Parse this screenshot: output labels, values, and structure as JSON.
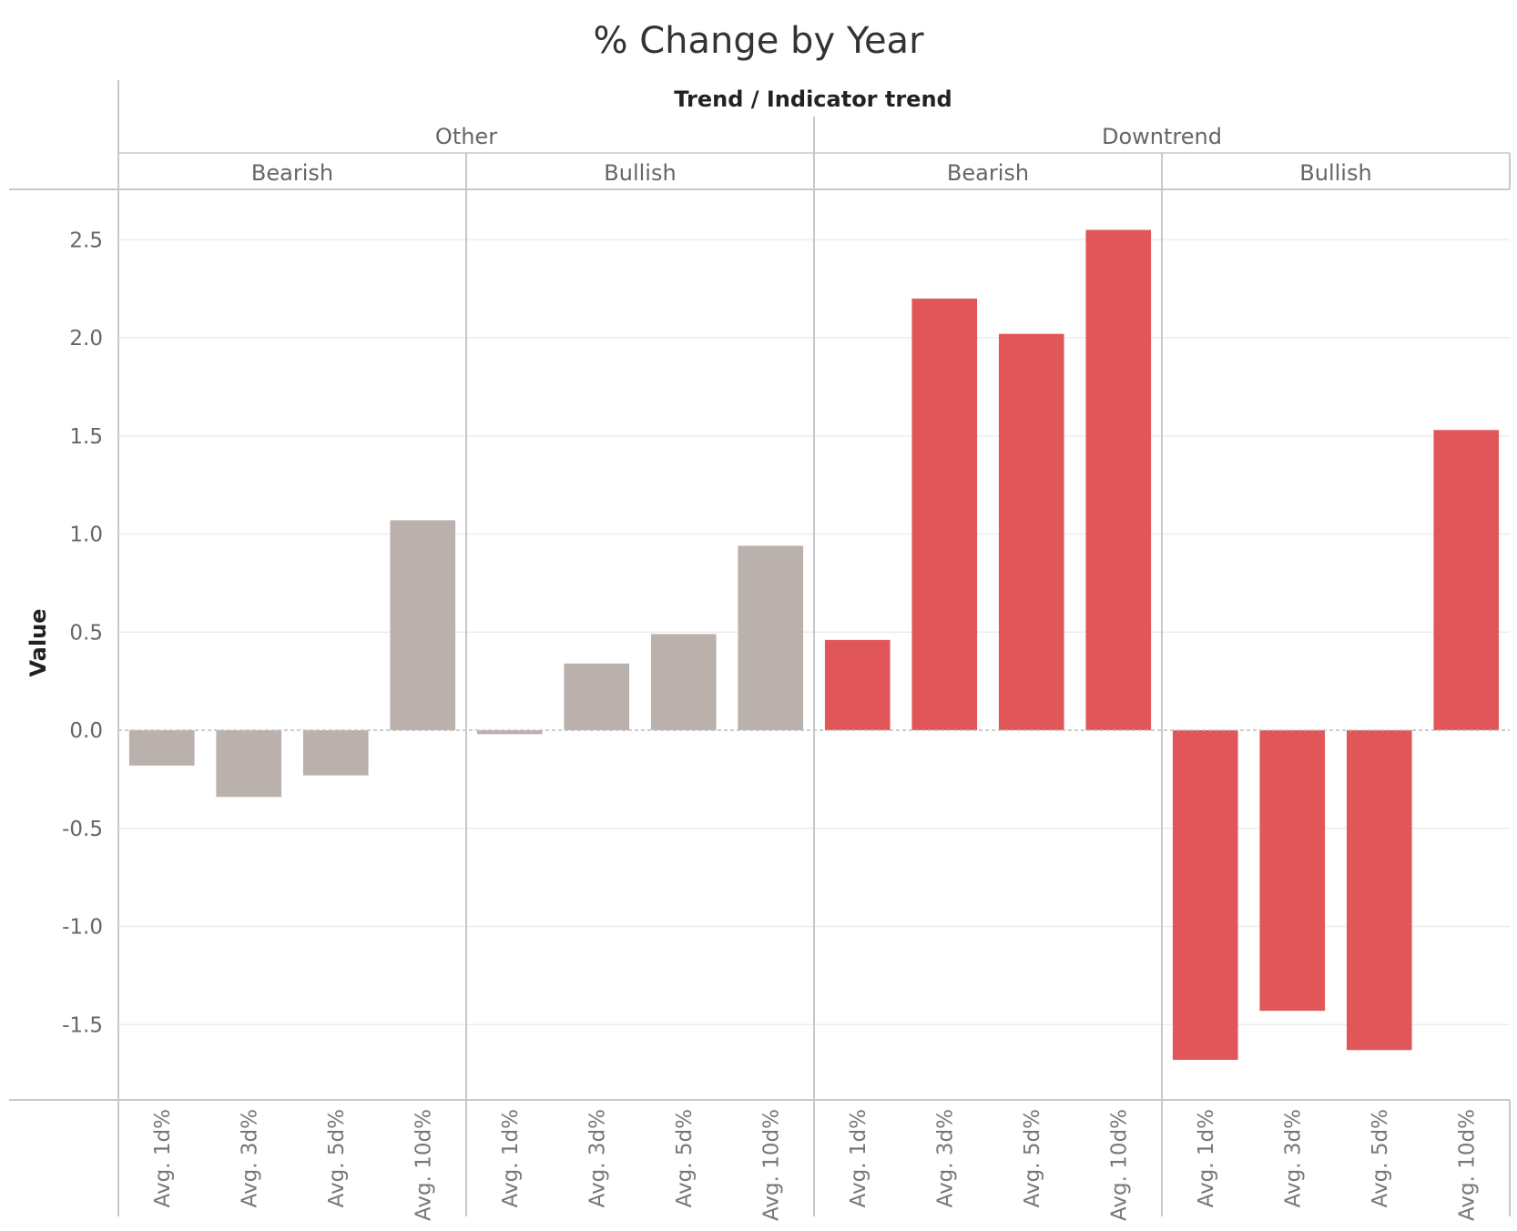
{
  "chart_data": {
    "type": "bar",
    "title": "% Change by Year",
    "column_header_title": "Trend / Indicator trend",
    "ylabel": "Value",
    "ylim": [
      -1.9,
      2.75
    ],
    "yticks": [
      2.5,
      2.0,
      1.5,
      1.0,
      0.5,
      0.0,
      -0.5,
      -1.0,
      -1.5
    ],
    "ytick_labels": [
      "2.5",
      "2.0",
      "1.5",
      "1.0",
      "0.5",
      "0.0",
      "-0.5",
      "-1.0",
      "-1.5"
    ],
    "grid": true,
    "categories": [
      "Avg. 1d%",
      "Avg. 3d%",
      "Avg. 5d%",
      "Avg. 10d%"
    ],
    "groups": [
      {
        "trend": "Other",
        "color": "#bab0ac",
        "panels": [
          {
            "indicator": "Bearish",
            "values": [
              -0.18,
              -0.34,
              -0.23,
              1.07
            ]
          },
          {
            "indicator": "Bullish",
            "values": [
              -0.02,
              0.34,
              0.49,
              0.94
            ]
          }
        ]
      },
      {
        "trend": "Downtrend",
        "color": "#e15759",
        "panels": [
          {
            "indicator": "Bearish",
            "values": [
              0.46,
              2.2,
              2.02,
              2.55
            ]
          },
          {
            "indicator": "Bullish",
            "values": [
              -1.68,
              -1.43,
              -1.63,
              1.53
            ]
          }
        ]
      }
    ]
  }
}
